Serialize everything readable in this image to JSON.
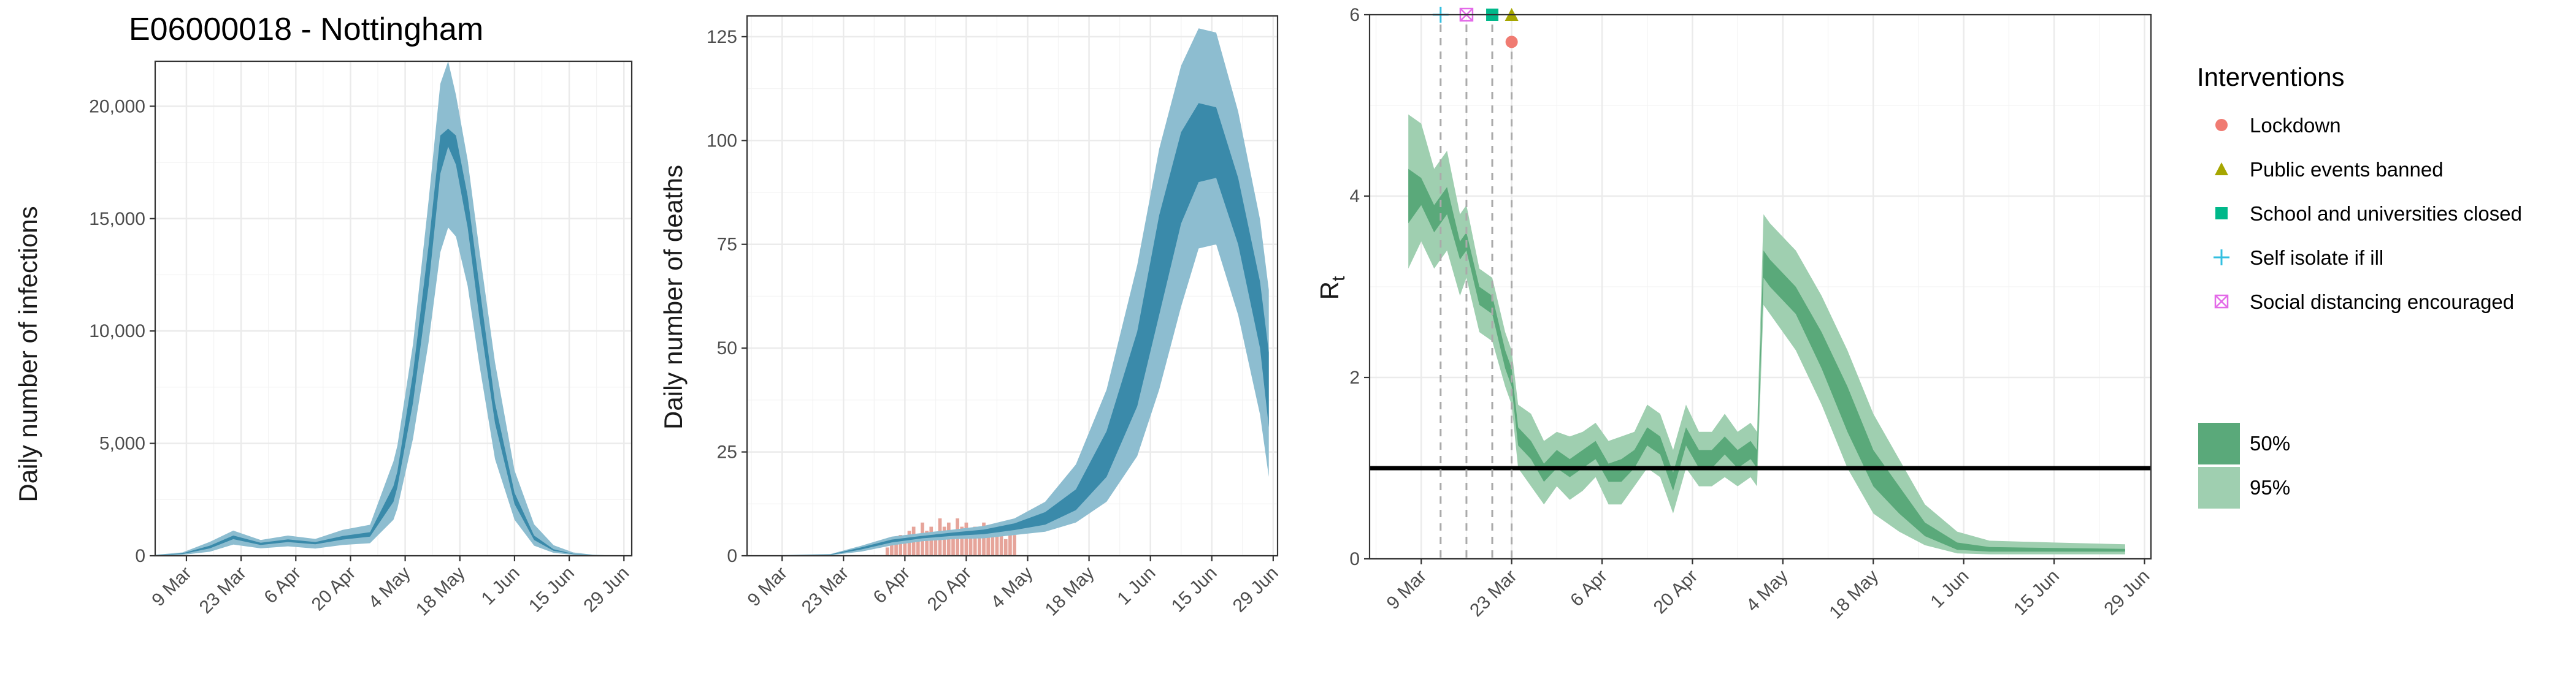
{
  "chart_data": [
    {
      "type": "area",
      "title": "E06000018 - Nottingham",
      "ylabel": "Daily number of infections",
      "xlabel": "",
      "xlim": [
        "2020-03-01",
        "2020-07-01"
      ],
      "ylim": [
        0,
        22000
      ],
      "x_ticks": [
        {
          "date": "2020-03-09",
          "label": "9 Mar"
        },
        {
          "date": "2020-03-23",
          "label": "23 Mar"
        },
        {
          "date": "2020-04-06",
          "label": "6 Apr"
        },
        {
          "date": "2020-04-20",
          "label": "20 Apr"
        },
        {
          "date": "2020-05-04",
          "label": "4 May"
        },
        {
          "date": "2020-05-18",
          "label": "18 May"
        },
        {
          "date": "2020-06-01",
          "label": "1 Jun"
        },
        {
          "date": "2020-06-15",
          "label": "15 Jun"
        },
        {
          "date": "2020-06-29",
          "label": "29 Jun"
        }
      ],
      "y_ticks": [
        {
          "value": 0,
          "label": "0"
        },
        {
          "value": 5000,
          "label": "5,000"
        },
        {
          "value": 10000,
          "label": "10,000"
        },
        {
          "value": 15000,
          "label": "15,000"
        },
        {
          "value": 20000,
          "label": "20,000"
        }
      ],
      "grid": true,
      "colors": {
        "ci95": "#8dbdd0",
        "ci50": "#3a8aaa"
      },
      "series": {
        "dates": [
          "2020-03-01",
          "2020-03-08",
          "2020-03-15",
          "2020-03-21",
          "2020-03-28",
          "2020-04-04",
          "2020-04-11",
          "2020-04-18",
          "2020-04-25",
          "2020-05-01",
          "2020-05-02",
          "2020-05-06",
          "2020-05-10",
          "2020-05-13",
          "2020-05-15",
          "2020-05-17",
          "2020-05-20",
          "2020-05-23",
          "2020-05-27",
          "2020-06-01",
          "2020-06-06",
          "2020-06-11",
          "2020-06-16",
          "2020-06-21",
          "2020-06-27"
        ],
        "ci95_low": [
          10,
          40,
          180,
          500,
          330,
          420,
          320,
          480,
          560,
          1600,
          2100,
          5200,
          9500,
          13500,
          14600,
          14200,
          12000,
          8500,
          4300,
          1600,
          450,
          130,
          40,
          12,
          3
        ],
        "ci95_high": [
          40,
          150,
          620,
          1120,
          700,
          900,
          750,
          1150,
          1380,
          4200,
          4900,
          9400,
          15800,
          21000,
          22000,
          20500,
          17600,
          13600,
          8600,
          3800,
          1400,
          470,
          150,
          45,
          12
        ],
        "ci50_low": [
          20,
          80,
          330,
          740,
          480,
          610,
          510,
          720,
          850,
          2400,
          3050,
          6800,
          12000,
          17000,
          18200,
          17400,
          14600,
          10600,
          5900,
          2300,
          700,
          220,
          70,
          20,
          6
        ],
        "ci50_high": [
          30,
          110,
          450,
          900,
          580,
          730,
          610,
          880,
          1050,
          3100,
          3750,
          8100,
          13800,
          18700,
          19000,
          18700,
          16000,
          12000,
          6800,
          2800,
          900,
          290,
          90,
          26,
          8
        ]
      }
    },
    {
      "type": "area",
      "title": "",
      "ylabel": "Daily number of deaths",
      "xlabel": "",
      "xlim": [
        "2020-03-01",
        "2020-06-30"
      ],
      "ylim": [
        0,
        130
      ],
      "x_ticks": [
        {
          "date": "2020-03-09",
          "label": "9 Mar"
        },
        {
          "date": "2020-03-23",
          "label": "23 Mar"
        },
        {
          "date": "2020-04-06",
          "label": "6 Apr"
        },
        {
          "date": "2020-04-20",
          "label": "20 Apr"
        },
        {
          "date": "2020-05-04",
          "label": "4 May"
        },
        {
          "date": "2020-05-18",
          "label": "18 May"
        },
        {
          "date": "2020-06-01",
          "label": "1 Jun"
        },
        {
          "date": "2020-06-15",
          "label": "15 Jun"
        },
        {
          "date": "2020-06-29",
          "label": "29 Jun"
        }
      ],
      "y_ticks": [
        {
          "value": 0,
          "label": "0"
        },
        {
          "value": 25,
          "label": "25"
        },
        {
          "value": 50,
          "label": "50"
        },
        {
          "value": 75,
          "label": "75"
        },
        {
          "value": 100,
          "label": "100"
        },
        {
          "value": 125,
          "label": "125"
        }
      ],
      "grid": true,
      "colors": {
        "ci95": "#8dbdd0",
        "ci50": "#3a8aaa",
        "observed": "#e6a49a"
      },
      "series": {
        "dates": [
          "2020-03-01",
          "2020-03-20",
          "2020-03-27",
          "2020-04-03",
          "2020-04-10",
          "2020-04-17",
          "2020-04-24",
          "2020-05-01",
          "2020-05-08",
          "2020-05-15",
          "2020-05-22",
          "2020-05-29",
          "2020-06-03",
          "2020-06-08",
          "2020-06-12",
          "2020-06-16",
          "2020-06-21",
          "2020-06-26",
          "2020-06-28"
        ],
        "ci95_low": [
          0,
          0.1,
          1,
          2.5,
          3.5,
          4,
          4.2,
          5,
          5.8,
          8,
          13,
          24,
          40,
          60,
          74,
          75,
          58,
          34,
          19
        ],
        "ci95_high": [
          0,
          0.4,
          2.4,
          4.6,
          5.5,
          6.3,
          7.2,
          9,
          13,
          22,
          40,
          70,
          98,
          118,
          127,
          126,
          107,
          81,
          64
        ],
        "ci50_low": [
          0,
          0.2,
          1.5,
          3.2,
          4.2,
          4.8,
          5.2,
          6.2,
          7.5,
          11,
          19,
          36,
          58,
          80,
          90,
          91,
          75,
          50,
          31
        ],
        "ci50_high": [
          0,
          0.3,
          2,
          3.9,
          4.8,
          5.6,
          6.3,
          7.8,
          10.5,
          16,
          30,
          54,
          82,
          102,
          109,
          108,
          91,
          66,
          49
        ]
      },
      "observed_deaths": {
        "dates": [
          "2020-04-02",
          "2020-04-03",
          "2020-04-04",
          "2020-04-05",
          "2020-04-06",
          "2020-04-07",
          "2020-04-08",
          "2020-04-09",
          "2020-04-10",
          "2020-04-11",
          "2020-04-12",
          "2020-04-13",
          "2020-04-14",
          "2020-04-15",
          "2020-04-16",
          "2020-04-17",
          "2020-04-18",
          "2020-04-19",
          "2020-04-20",
          "2020-04-21",
          "2020-04-22",
          "2020-04-23",
          "2020-04-24",
          "2020-04-25",
          "2020-04-26",
          "2020-04-27",
          "2020-04-28",
          "2020-04-29",
          "2020-04-30",
          "2020-05-01"
        ],
        "values": [
          2,
          4,
          3,
          5,
          4,
          6,
          7,
          5,
          8,
          6,
          7,
          5,
          9,
          7,
          8,
          6,
          9,
          7,
          8,
          5,
          7,
          6,
          8,
          5,
          7,
          6,
          8,
          4,
          6,
          5
        ]
      }
    },
    {
      "type": "area",
      "title": "",
      "ylabel": "R",
      "ylabel_subscript": "t",
      "xlabel": "",
      "xlim": [
        "2020-03-01",
        "2020-06-30"
      ],
      "ylim": [
        0,
        6
      ],
      "x_ticks": [
        {
          "date": "2020-03-09",
          "label": "9 Mar"
        },
        {
          "date": "2020-03-23",
          "label": "23 Mar"
        },
        {
          "date": "2020-04-06",
          "label": "6 Apr"
        },
        {
          "date": "2020-04-20",
          "label": "20 Apr"
        },
        {
          "date": "2020-05-04",
          "label": "4 May"
        },
        {
          "date": "2020-05-18",
          "label": "18 May"
        },
        {
          "date": "2020-06-01",
          "label": "1 Jun"
        },
        {
          "date": "2020-06-15",
          "label": "15 Jun"
        },
        {
          "date": "2020-06-29",
          "label": "29 Jun"
        }
      ],
      "y_ticks": [
        {
          "value": 0,
          "label": "0"
        },
        {
          "value": 2,
          "label": "2"
        },
        {
          "value": 4,
          "label": "4"
        },
        {
          "value": 6,
          "label": "6"
        }
      ],
      "grid": true,
      "reference_line": 1,
      "colors": {
        "ci95": "#9fcfb0",
        "ci50": "#5aa97a"
      },
      "series": {
        "dates": [
          "2020-03-07",
          "2020-03-09",
          "2020-03-11",
          "2020-03-13",
          "2020-03-15",
          "2020-03-16",
          "2020-03-18",
          "2020-03-20",
          "2020-03-22",
          "2020-03-23",
          "2020-03-24",
          "2020-03-26",
          "2020-03-28",
          "2020-03-30",
          "2020-04-01",
          "2020-04-03",
          "2020-04-05",
          "2020-04-07",
          "2020-04-09",
          "2020-04-11",
          "2020-04-13",
          "2020-04-15",
          "2020-04-17",
          "2020-04-19",
          "2020-04-21",
          "2020-04-23",
          "2020-04-25",
          "2020-04-27",
          "2020-04-29",
          "2020-04-30",
          "2020-05-01",
          "2020-05-02",
          "2020-05-06",
          "2020-05-10",
          "2020-05-14",
          "2020-05-18",
          "2020-05-22",
          "2020-05-26",
          "2020-05-31",
          "2020-06-05",
          "2020-06-15",
          "2020-06-26"
        ],
        "ci95_low": [
          3.2,
          3.5,
          3.2,
          3.4,
          2.9,
          3.1,
          2.5,
          2.4,
          1.9,
          1.7,
          1.0,
          0.8,
          0.6,
          0.8,
          0.65,
          0.75,
          0.9,
          0.6,
          0.6,
          0.8,
          1.0,
          0.9,
          0.5,
          1.0,
          0.8,
          0.8,
          0.9,
          0.8,
          0.9,
          0.8,
          2.8,
          2.7,
          2.3,
          1.7,
          1.0,
          0.5,
          0.3,
          0.15,
          0.06,
          0.05,
          0.05,
          0.05
        ],
        "ci95_high": [
          4.9,
          4.8,
          4.3,
          4.5,
          3.8,
          3.9,
          3.2,
          3.1,
          2.5,
          2.3,
          1.7,
          1.6,
          1.3,
          1.4,
          1.35,
          1.4,
          1.5,
          1.3,
          1.35,
          1.4,
          1.7,
          1.6,
          1.2,
          1.7,
          1.4,
          1.4,
          1.6,
          1.4,
          1.5,
          1.4,
          3.8,
          3.7,
          3.4,
          2.9,
          2.3,
          1.6,
          1.1,
          0.6,
          0.3,
          0.2,
          0.18,
          0.16
        ],
        "ci50_low": [
          3.7,
          3.9,
          3.6,
          3.8,
          3.3,
          3.4,
          2.8,
          2.7,
          2.1,
          1.9,
          1.25,
          1.1,
          0.85,
          1.0,
          0.9,
          1.0,
          1.1,
          0.85,
          0.85,
          1.0,
          1.25,
          1.15,
          0.75,
          1.25,
          1.0,
          1.0,
          1.15,
          1.0,
          1.1,
          1.0,
          3.1,
          3.0,
          2.7,
          2.1,
          1.4,
          0.8,
          0.5,
          0.25,
          0.1,
          0.08,
          0.08,
          0.08
        ],
        "ci50_high": [
          4.3,
          4.2,
          3.9,
          4.1,
          3.5,
          3.6,
          3.0,
          2.9,
          2.3,
          2.1,
          1.45,
          1.3,
          1.05,
          1.2,
          1.1,
          1.2,
          1.3,
          1.05,
          1.1,
          1.2,
          1.45,
          1.35,
          0.95,
          1.45,
          1.2,
          1.2,
          1.35,
          1.2,
          1.3,
          1.2,
          3.4,
          3.3,
          3.0,
          2.5,
          1.9,
          1.2,
          0.8,
          0.4,
          0.18,
          0.13,
          0.12,
          0.11
        ]
      },
      "interventions": [
        {
          "name": "Lockdown",
          "date": "2020-03-23",
          "marker": "circle",
          "color": "#f07b72",
          "y": 5.7
        },
        {
          "name": "Public events banned",
          "date": "2020-03-23",
          "marker": "triangle",
          "color": "#a6a600",
          "y": 6.0
        },
        {
          "name": "School and universities closed",
          "date": "2020-03-20",
          "marker": "square",
          "color": "#00b88a",
          "y": 6.0
        },
        {
          "name": "Self isolate if ill",
          "date": "2020-03-12",
          "marker": "plus",
          "color": "#33bfe0",
          "y": 6.0
        },
        {
          "name": "Social distancing encouraged",
          "date": "2020-03-16",
          "marker": "boxcross",
          "color": "#e36ae8",
          "y": 6.0
        }
      ]
    }
  ],
  "legend": {
    "title": "Interventions",
    "items": [
      {
        "label": "Lockdown",
        "marker": "circle",
        "color": "#f07b72"
      },
      {
        "label": "Public events banned",
        "marker": "triangle",
        "color": "#a6a600"
      },
      {
        "label": "School and universities closed",
        "marker": "square",
        "color": "#00b88a"
      },
      {
        "label": "Self isolate if ill",
        "marker": "plus",
        "color": "#33bfe0"
      },
      {
        "label": "Social distancing encouraged",
        "marker": "boxcross",
        "color": "#e36ae8"
      }
    ],
    "band_items": [
      {
        "label": "50%",
        "color": "#5aa97a"
      },
      {
        "label": "95%",
        "color": "#9fcfb0"
      }
    ]
  }
}
